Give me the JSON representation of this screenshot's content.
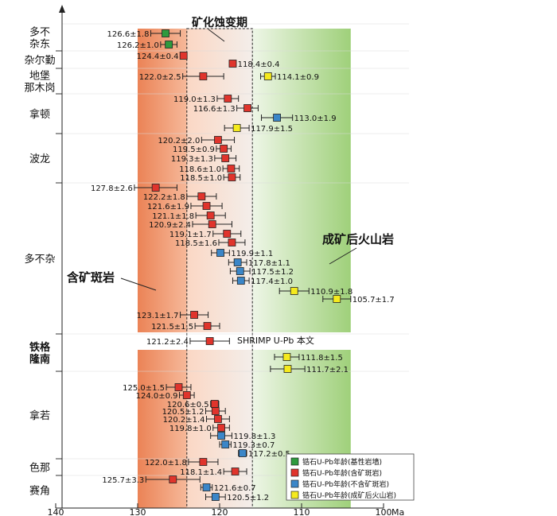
{
  "chart_data": {
    "type": "scatter",
    "xlabel": "Ma",
    "xlim": [
      140,
      100
    ],
    "x_ticks": [
      "140",
      "130",
      "120",
      "110",
      "100"
    ],
    "background_zones": [
      {
        "from": 130,
        "to": 124,
        "color": "#ee8e5e"
      },
      {
        "from": 124,
        "to": 116,
        "color": "#fbe3d6"
      },
      {
        "from": 116,
        "to": 104,
        "color": "#b8dc94"
      }
    ],
    "dashed_box_range": [
      124,
      116
    ],
    "annotations": {
      "mineralization_period": "矿化蚀变期",
      "ore_porphyry": "含矿斑岩",
      "post_ore_volcanic": "成矿后火山岩",
      "this_study": "SHRIMP U-Pb 本文"
    },
    "groups": [
      {
        "name": "多不杂东",
        "row_start": 0,
        "row_end": 2
      },
      {
        "name": "杂尔勤",
        "row_start": 2,
        "row_end": 4
      },
      {
        "name": "地堡那木岗",
        "row_start": 4,
        "row_end": 5
      },
      {
        "name": "拿顿",
        "row_start": 5,
        "row_end": 8
      },
      {
        "name": "波龙",
        "row_start": 8,
        "row_end": 14
      },
      {
        "name": "多不杂",
        "row_start": 14,
        "row_end": 27
      },
      {
        "name": "铁格隆南",
        "row_start": 27,
        "row_end": 30
      },
      {
        "name": "拿若",
        "row_start": 30,
        "row_end": 38
      },
      {
        "name": "色那",
        "row_start": 38,
        "row_end": 39
      },
      {
        "name": "赛角",
        "row_start": 39,
        "row_end": 42
      }
    ],
    "legend": [
      {
        "type": "mafic",
        "label": "锆石U-Pb年龄(基性岩墙)",
        "color": "#2e9a3e"
      },
      {
        "type": "ore",
        "label": "锆石U-Pb年龄(含矿斑岩)",
        "color": "#e0342c"
      },
      {
        "type": "barren",
        "label": "锆石U-Pb年龄(不含矿斑岩)",
        "color": "#3b86c8"
      },
      {
        "type": "volcanic",
        "label": "锆石U-Pb年龄(成矿后火山岩)",
        "color": "#f5ea1e"
      }
    ],
    "points": [
      {
        "row": 0,
        "age": 126.6,
        "err": 1.8,
        "type": "mafic",
        "label": "126.6±1.8"
      },
      {
        "row": 1,
        "age": 126.2,
        "err": 1.0,
        "type": "mafic",
        "label": "126.2±1.0"
      },
      {
        "row": 2,
        "age": 124.4,
        "err": 0.4,
        "type": "ore",
        "label": "124.4±0.4"
      },
      {
        "row": 3,
        "age": 118.4,
        "err": 0.4,
        "type": "ore",
        "label": "118.4±0.4"
      },
      {
        "row": 4,
        "age": 122.0,
        "err": 2.5,
        "type": "ore",
        "label": "122.0±2.5"
      },
      {
        "row": 4,
        "age": 114.1,
        "err": 0.9,
        "type": "volcanic",
        "label": "114.1±0.9"
      },
      {
        "row": 5,
        "age": 119.0,
        "err": 1.3,
        "type": "ore",
        "label": "119.0±1.3"
      },
      {
        "row": 6,
        "age": 116.6,
        "err": 1.3,
        "type": "ore",
        "label": "116.6±1.3"
      },
      {
        "row": 7,
        "age": 113.0,
        "err": 1.9,
        "type": "barren",
        "label": "113.0±1.9"
      },
      {
        "row": 8,
        "age": 117.9,
        "err": 1.5,
        "type": "volcanic",
        "label": "117.9±1.5"
      },
      {
        "row": 9,
        "age": 120.2,
        "err": 2.0,
        "type": "ore",
        "label": "120.2±2.0"
      },
      {
        "row": 10,
        "age": 119.5,
        "err": 0.9,
        "type": "ore",
        "label": "119.5±0.9"
      },
      {
        "row": 11,
        "age": 119.3,
        "err": 1.3,
        "type": "ore",
        "label": "119.3±1.3"
      },
      {
        "row": 12,
        "age": 118.6,
        "err": 1.0,
        "type": "ore",
        "label": "118.6±1.0"
      },
      {
        "row": 13,
        "age": 118.5,
        "err": 1.0,
        "type": "ore",
        "label": "118.5±1.0"
      },
      {
        "row": 14,
        "age": 127.8,
        "err": 2.6,
        "type": "ore",
        "label": "127.8±2.6"
      },
      {
        "row": 15,
        "age": 122.2,
        "err": 1.8,
        "type": "ore",
        "label": "122.2±1.8"
      },
      {
        "row": 16,
        "age": 121.6,
        "err": 1.9,
        "type": "ore",
        "label": "121.6±1.9"
      },
      {
        "row": 17,
        "age": 121.1,
        "err": 1.8,
        "type": "ore",
        "label": "121.1±1.8"
      },
      {
        "row": 18,
        "age": 120.9,
        "err": 2.4,
        "type": "ore",
        "label": "120.9±2.4"
      },
      {
        "row": 19,
        "age": 119.1,
        "err": 1.7,
        "type": "ore",
        "label": "119.1±1.7"
      },
      {
        "row": 20,
        "age": 118.5,
        "err": 1.6,
        "type": "ore",
        "label": "118.5±1.6"
      },
      {
        "row": 21,
        "age": 119.9,
        "err": 1.1,
        "type": "barren",
        "label": "119.9±1.1"
      },
      {
        "row": 22,
        "age": 117.8,
        "err": 1.1,
        "type": "barren",
        "label": "117.8±1.1"
      },
      {
        "row": 23,
        "age": 117.5,
        "err": 1.2,
        "type": "barren",
        "label": "117.5±1.2"
      },
      {
        "row": 24,
        "age": 117.4,
        "err": 1.0,
        "type": "barren",
        "label": "117.4±1.0"
      },
      {
        "row": 25,
        "age": 110.9,
        "err": 1.8,
        "type": "volcanic",
        "label": "110.9±1.8"
      },
      {
        "row": 26,
        "age": 105.7,
        "err": 1.7,
        "type": "volcanic",
        "label": "105.7±1.7"
      },
      {
        "row": 27,
        "age": 123.1,
        "err": 1.7,
        "type": "ore",
        "label": "123.1±1.7"
      },
      {
        "row": 28,
        "age": 121.5,
        "err": 1.5,
        "type": "ore",
        "label": "121.5±1.5"
      },
      {
        "row": 29,
        "age": 121.2,
        "err": 2.4,
        "type": "ore",
        "label": "121.2±2.4"
      },
      {
        "row": 30,
        "age": 111.8,
        "err": 1.5,
        "type": "volcanic",
        "label": "111.8±1.5"
      },
      {
        "row": 31,
        "age": 111.7,
        "err": 2.1,
        "type": "volcanic",
        "label": "111.7±2.1"
      },
      {
        "row": 32,
        "age": 125.0,
        "err": 1.5,
        "type": "ore",
        "label": "125.0±1.5"
      },
      {
        "row": 33,
        "age": 124.0,
        "err": 0.9,
        "type": "ore",
        "label": "124.0±0.9"
      },
      {
        "row": 34,
        "age": 120.6,
        "err": 0.5,
        "type": "ore",
        "label": "120.6±0.5"
      },
      {
        "row": 35,
        "age": 120.5,
        "err": 1.2,
        "type": "ore",
        "label": "120.5±1.2"
      },
      {
        "row": 36,
        "age": 120.2,
        "err": 1.4,
        "type": "ore",
        "label": "120.2±1.4"
      },
      {
        "row": 37,
        "age": 119.8,
        "err": 1.0,
        "type": "ore",
        "label": "119.8±1.0"
      },
      {
        "row": 38,
        "age": 119.8,
        "err": 1.3,
        "type": "barren",
        "label": "119.8±1.3"
      },
      {
        "row": 39,
        "age": 119.3,
        "err": 0.7,
        "type": "barren",
        "label": "119.3±0.7"
      },
      {
        "row": 40,
        "age": 117.2,
        "err": 0.5,
        "type": "barren",
        "label": "117.2±0.5"
      },
      {
        "row": 41,
        "age": 122.0,
        "err": 1.8,
        "type": "ore",
        "label": "122.0±1.8"
      },
      {
        "row": 42,
        "age": 118.1,
        "err": 1.4,
        "type": "ore",
        "label": "118.1±1.4"
      },
      {
        "row": 43,
        "age": 125.7,
        "err": 3.3,
        "type": "ore",
        "label": "125.7±3.3"
      },
      {
        "row": 44,
        "age": 121.6,
        "err": 0.7,
        "type": "barren",
        "label": "121.6±0.7"
      },
      {
        "row": 45,
        "age": 120.5,
        "err": 1.2,
        "type": "barren",
        "label": "120.5±1.2"
      }
    ]
  }
}
